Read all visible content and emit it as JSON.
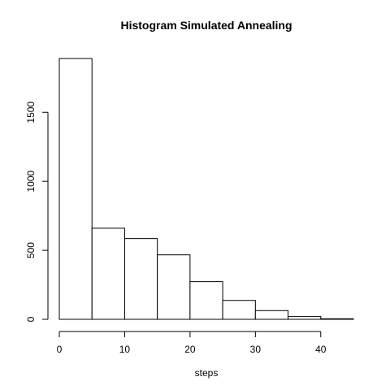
{
  "chart_data": {
    "type": "bar",
    "title": "Histogram Simulated Annealing",
    "xlabel": "steps",
    "ylabel": "",
    "bins": [
      {
        "from": 0,
        "to": 5,
        "count": 1890
      },
      {
        "from": 5,
        "to": 10,
        "count": 660
      },
      {
        "from": 10,
        "to": 15,
        "count": 585
      },
      {
        "from": 15,
        "to": 20,
        "count": 467
      },
      {
        "from": 20,
        "to": 25,
        "count": 273
      },
      {
        "from": 25,
        "to": 30,
        "count": 137
      },
      {
        "from": 30,
        "to": 35,
        "count": 63
      },
      {
        "from": 35,
        "to": 40,
        "count": 20
      },
      {
        "from": 40,
        "to": 45,
        "count": 4
      }
    ],
    "xticks": [
      0,
      10,
      20,
      30,
      40
    ],
    "yticks": [
      0,
      500,
      1000,
      1500
    ],
    "xlim": [
      0,
      45
    ],
    "ylim": [
      0,
      1890
    ],
    "grid": false,
    "colors": {
      "bar_fill": "#ffffff",
      "bar_stroke": "#000000"
    }
  }
}
